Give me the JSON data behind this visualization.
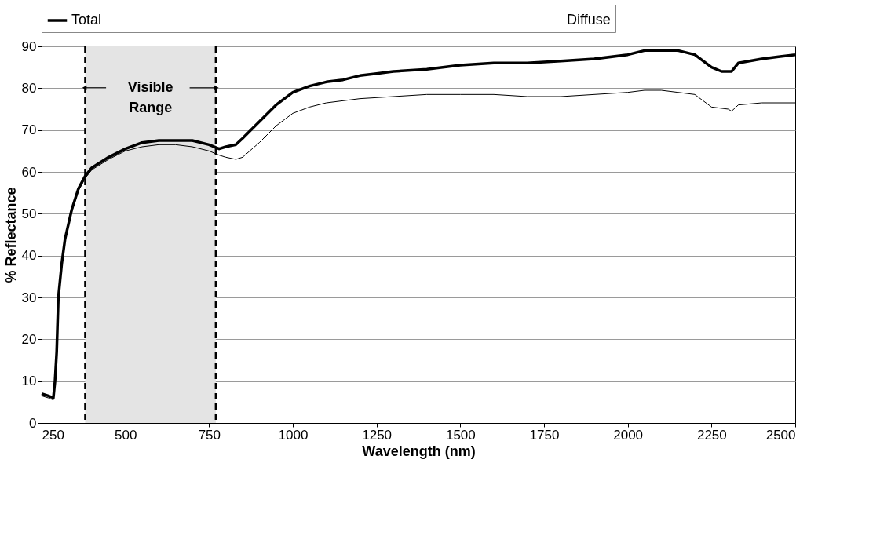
{
  "chart_data": {
    "type": "line",
    "xlabel": "Wavelength (nm)",
    "ylabel": "% Reflectance",
    "xlim": [
      250,
      2500
    ],
    "xticks": [
      250,
      500,
      750,
      1000,
      1250,
      1500,
      1750,
      2000,
      2250,
      2500
    ],
    "ylim": [
      0,
      90
    ],
    "yticks": [
      0,
      10,
      20,
      30,
      40,
      50,
      60,
      70,
      80,
      90
    ],
    "grid": "y",
    "legend": "top",
    "line_style": "solid",
    "marker": "none",
    "bands": [
      {
        "axis": "x",
        "from": 380,
        "to": 770,
        "label": "Visible Range",
        "color": "#e4e4e4"
      }
    ],
    "ref_lines": [
      {
        "axis": "x",
        "value": 380,
        "label": null,
        "line_style": "dashed",
        "color": "#000000"
      },
      {
        "axis": "x",
        "value": 770,
        "label": null,
        "line_style": "dashed",
        "color": "#000000"
      }
    ],
    "series": [
      {
        "name": "Total",
        "color": "#000000",
        "x": [
          250,
          270,
          285,
          290,
          295,
          300,
          310,
          320,
          340,
          360,
          380,
          400,
          450,
          500,
          550,
          600,
          650,
          700,
          750,
          780,
          800,
          830,
          850,
          900,
          950,
          1000,
          1050,
          1100,
          1150,
          1200,
          1250,
          1300,
          1400,
          1500,
          1600,
          1700,
          1800,
          1900,
          2000,
          2050,
          2100,
          2150,
          2200,
          2250,
          2280,
          2310,
          2330,
          2400,
          2450,
          2500
        ],
        "values": [
          7,
          6.5,
          6,
          10,
          17,
          30,
          38,
          44,
          51,
          56,
          59,
          61,
          63.5,
          65.5,
          67,
          67.5,
          67.5,
          67.5,
          66.5,
          65.5,
          66,
          66.5,
          68,
          72,
          76,
          79,
          80.5,
          81.5,
          82,
          83,
          83.5,
          84,
          84.5,
          85.5,
          86,
          86,
          86.5,
          87,
          88,
          89,
          89,
          89,
          88,
          85,
          84,
          84,
          86,
          87,
          87.5,
          88
        ]
      },
      {
        "name": "Diffuse",
        "color": "#000000",
        "x": [
          250,
          270,
          285,
          290,
          295,
          300,
          310,
          320,
          340,
          360,
          380,
          400,
          450,
          500,
          550,
          600,
          650,
          700,
          750,
          780,
          800,
          830,
          850,
          900,
          950,
          1000,
          1050,
          1100,
          1200,
          1300,
          1400,
          1500,
          1600,
          1700,
          1800,
          1900,
          2000,
          2050,
          2100,
          2200,
          2250,
          2300,
          2310,
          2330,
          2400,
          2500
        ],
        "values": [
          6.5,
          6,
          5.5,
          9.5,
          16.5,
          29.5,
          37.5,
          43.5,
          50.5,
          55.5,
          58.5,
          60.5,
          63,
          65,
          66,
          66.5,
          66.5,
          66,
          65,
          64,
          63.5,
          63,
          63.5,
          67,
          71,
          74,
          75.5,
          76.5,
          77.5,
          78,
          78.5,
          78.5,
          78.5,
          78,
          78,
          78.5,
          79,
          79.5,
          79.5,
          78.5,
          75.5,
          75,
          74.5,
          76,
          76.5,
          76.5
        ]
      }
    ]
  }
}
